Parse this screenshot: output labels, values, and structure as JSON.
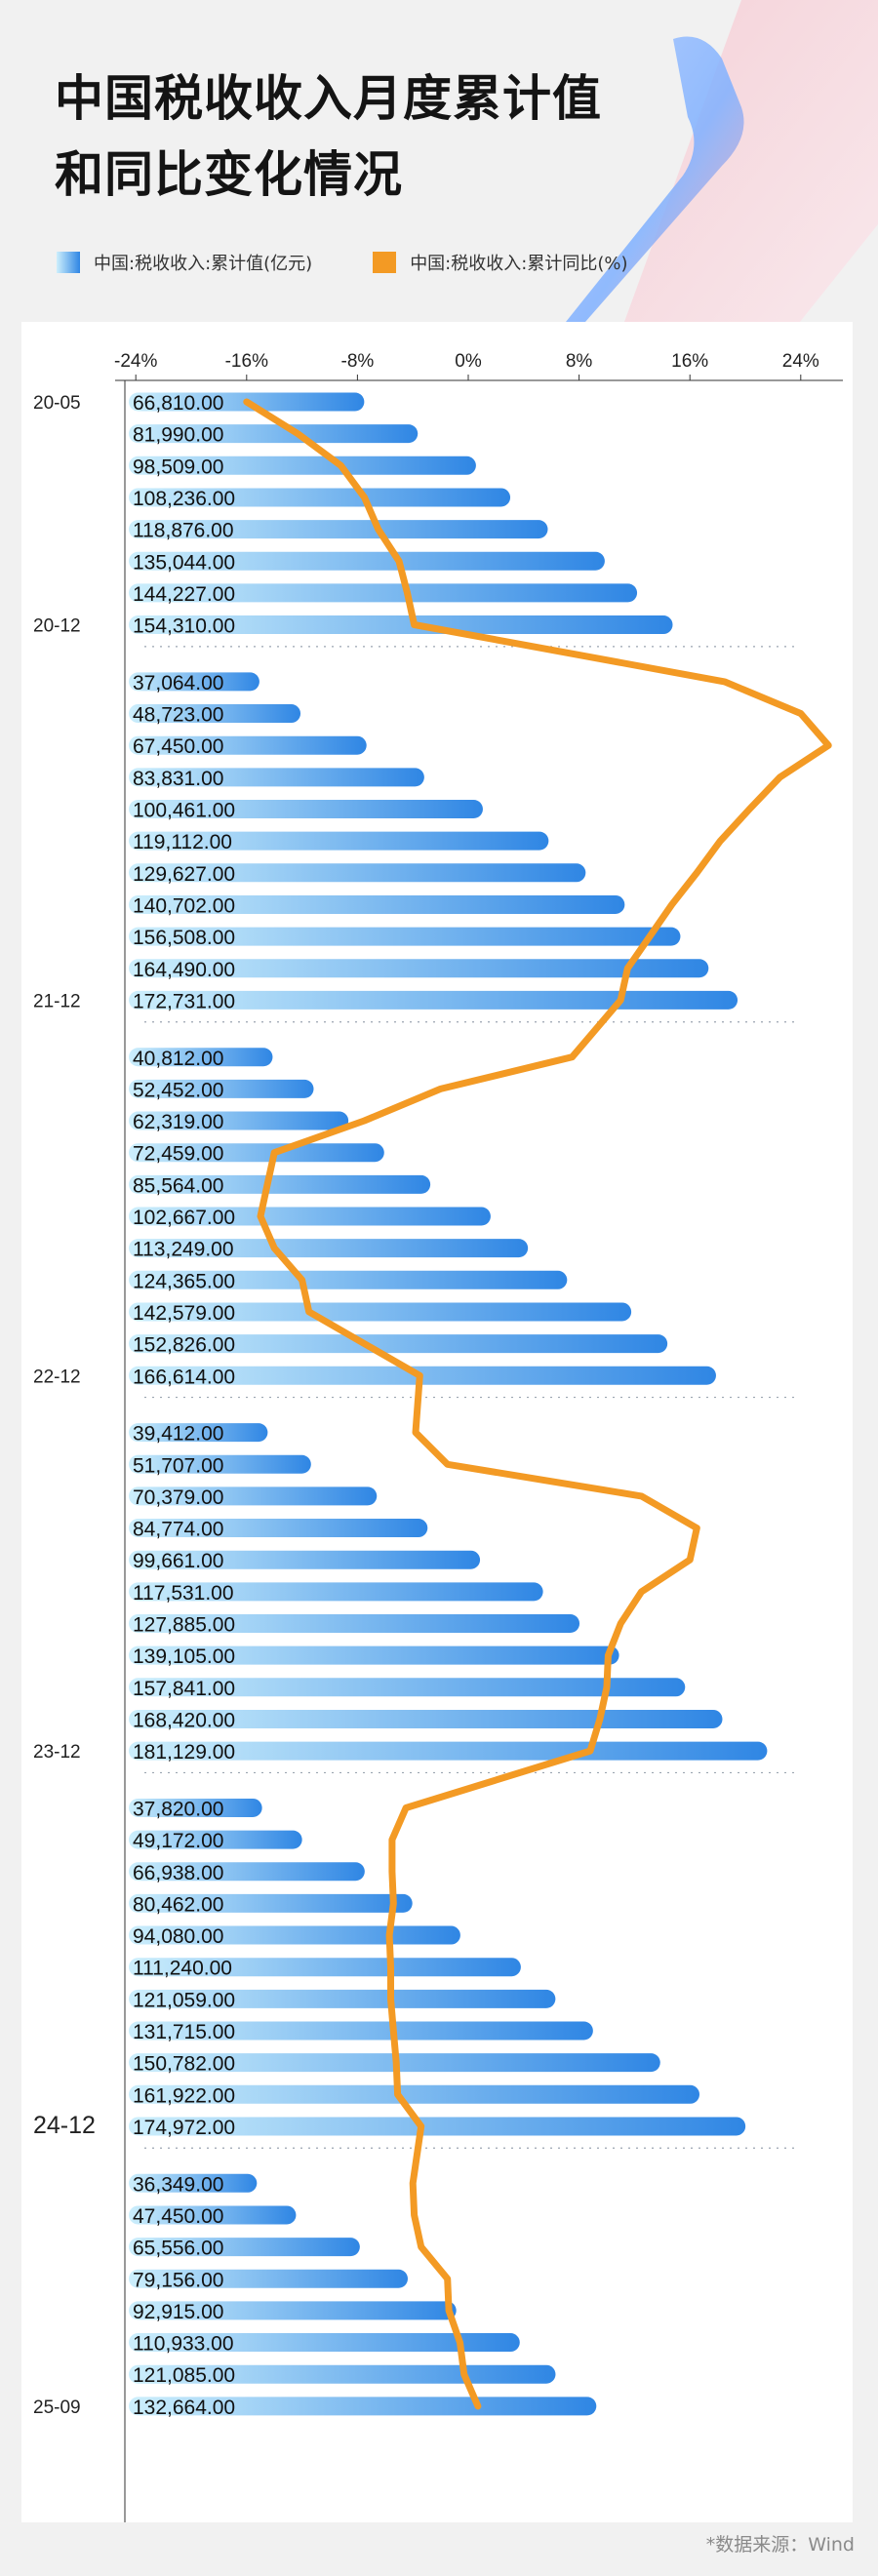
{
  "title_lines": [
    "中国税收收入月度累计值",
    "和同比变化情况"
  ],
  "legend": [
    {
      "label": "中国:税收收入:累计值(亿元)",
      "kind": "bar"
    },
    {
      "label": "中国:税收收入:累计同比(%)",
      "kind": "line"
    }
  ],
  "source": "*数据来源：Wind",
  "colors": {
    "bar_light": "#cdeffc",
    "bar_dark": "#2f86e4",
    "line": "#f39a24",
    "background": "#f1f1f1",
    "panel": "#ffffff"
  },
  "chart_data": {
    "type": "bar+line",
    "orientation": "horizontal",
    "x_axis": {
      "range": [
        -26,
        27
      ],
      "ticks": [
        "-24%",
        "-16%",
        "-8%",
        "0%",
        "8%",
        "16%",
        "24%"
      ],
      "tick_values": [
        -24,
        -16,
        -8,
        0,
        8,
        16,
        24
      ],
      "position": "top"
    },
    "bar_range": [
      0,
      186000
    ],
    "grid": false,
    "legend_position": "top-left",
    "groups": [
      {
        "label_first": "20-05",
        "label_last": "20-12",
        "bars": [
          66810,
          81990,
          98509,
          108236,
          118876,
          135044,
          144227,
          154310
        ],
        "yoy": [
          -16.0,
          -12.3,
          -9.2,
          -7.5,
          -6.5,
          -5.0,
          -4.4,
          -3.9
        ]
      },
      {
        "label_first": "",
        "label_last": "21-12",
        "bars": [
          37064,
          48723,
          67450,
          83831,
          100461,
          119112,
          129627,
          140702,
          156508,
          164490,
          172731
        ],
        "yoy": [
          18.5,
          24.0,
          26.0,
          22.5,
          20.3,
          18.2,
          16.5,
          14.7,
          13.1,
          11.5,
          11.0
        ]
      },
      {
        "label_first": "",
        "label_last": "22-12",
        "bars": [
          40812,
          52452,
          62319,
          72459,
          85564,
          102667,
          113249,
          124365,
          142579,
          152826,
          166614
        ],
        "yoy": [
          7.5,
          -2.0,
          -7.5,
          -14.0,
          -14.5,
          -15.0,
          -14.0,
          -12.0,
          -11.5,
          -7.5,
          -3.5
        ]
      },
      {
        "label_first": "",
        "label_last": "23-12",
        "bars": [
          39412,
          51707,
          70379,
          84774,
          99661,
          117531,
          127885,
          139105,
          157841,
          168420,
          181129
        ],
        "yoy": [
          -3.8,
          -1.5,
          12.5,
          16.5,
          16.0,
          12.5,
          11.0,
          10.1,
          10.0,
          9.5,
          8.8
        ]
      },
      {
        "label_first": "",
        "label_last": "24-12",
        "bars": [
          37820,
          49172,
          66938,
          80462,
          94080,
          111240,
          121059,
          131715,
          150782,
          161922,
          174972
        ],
        "yoy": [
          -4.5,
          -5.5,
          -5.5,
          -5.4,
          -5.7,
          -5.6,
          -5.6,
          -5.4,
          -5.2,
          -5.1,
          -3.4
        ]
      },
      {
        "label_first": "",
        "label_last": "25-09",
        "bars": [
          36349,
          47450,
          65556,
          79156,
          92915,
          110933,
          121085,
          132664
        ],
        "yoy": [
          -4.0,
          -3.9,
          -3.4,
          -1.5,
          -1.4,
          -0.6,
          -0.3,
          0.7
        ]
      }
    ]
  }
}
